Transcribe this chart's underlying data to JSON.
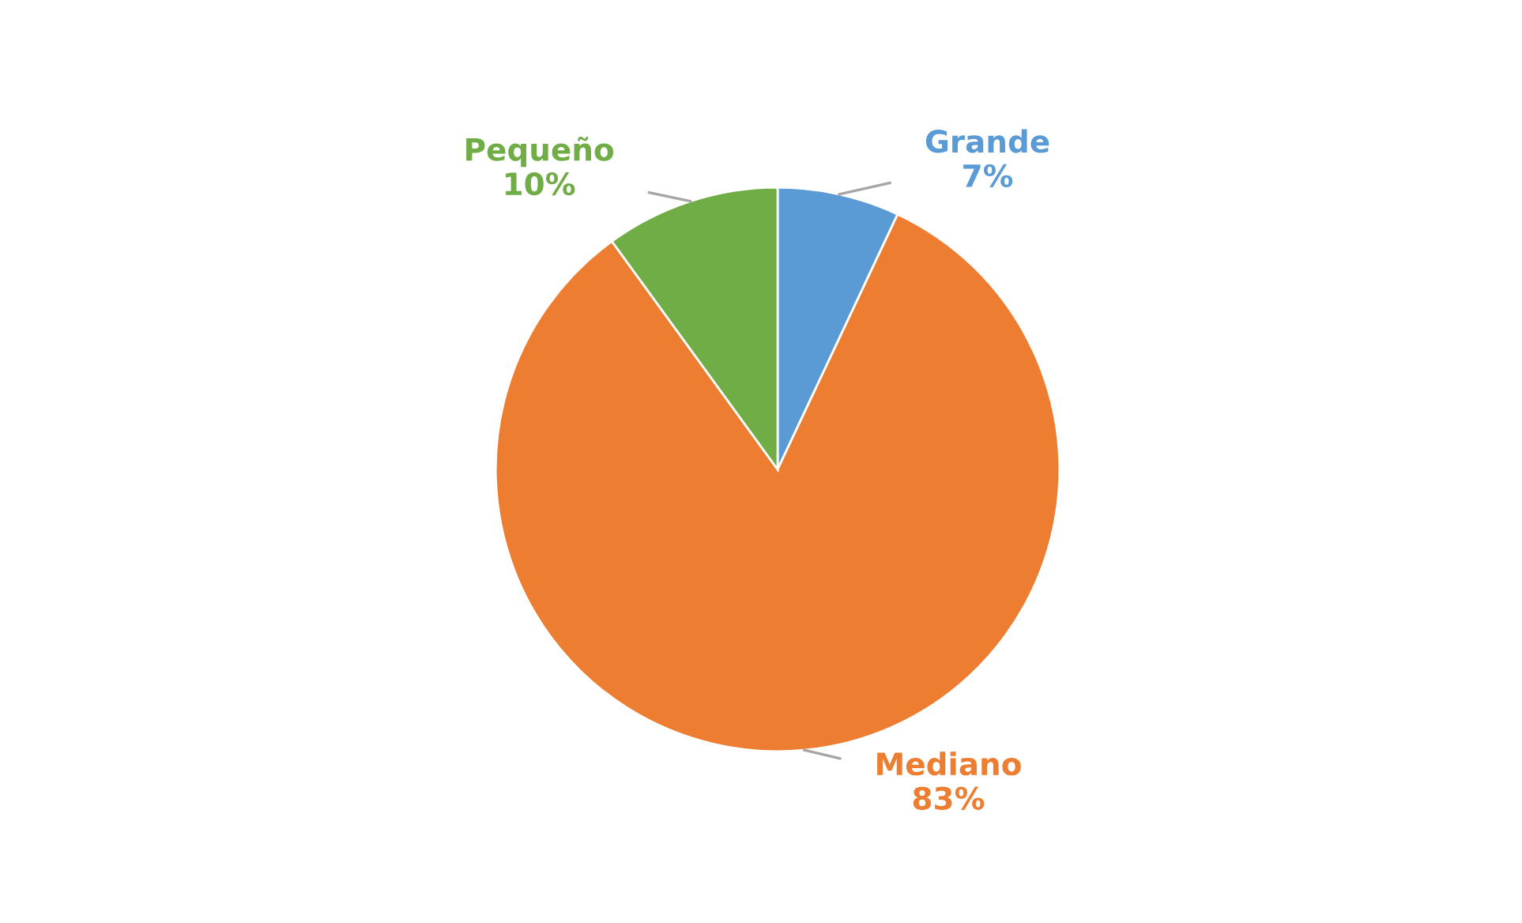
{
  "chart_data": {
    "type": "pie",
    "categories": [
      "Grande",
      "Mediano",
      "Pequeño"
    ],
    "values": [
      7,
      83,
      10
    ],
    "colors": [
      "#5b9bd5",
      "#ed7d31",
      "#70ad47"
    ],
    "value_labels": [
      "7%",
      "83%",
      "10%"
    ]
  }
}
